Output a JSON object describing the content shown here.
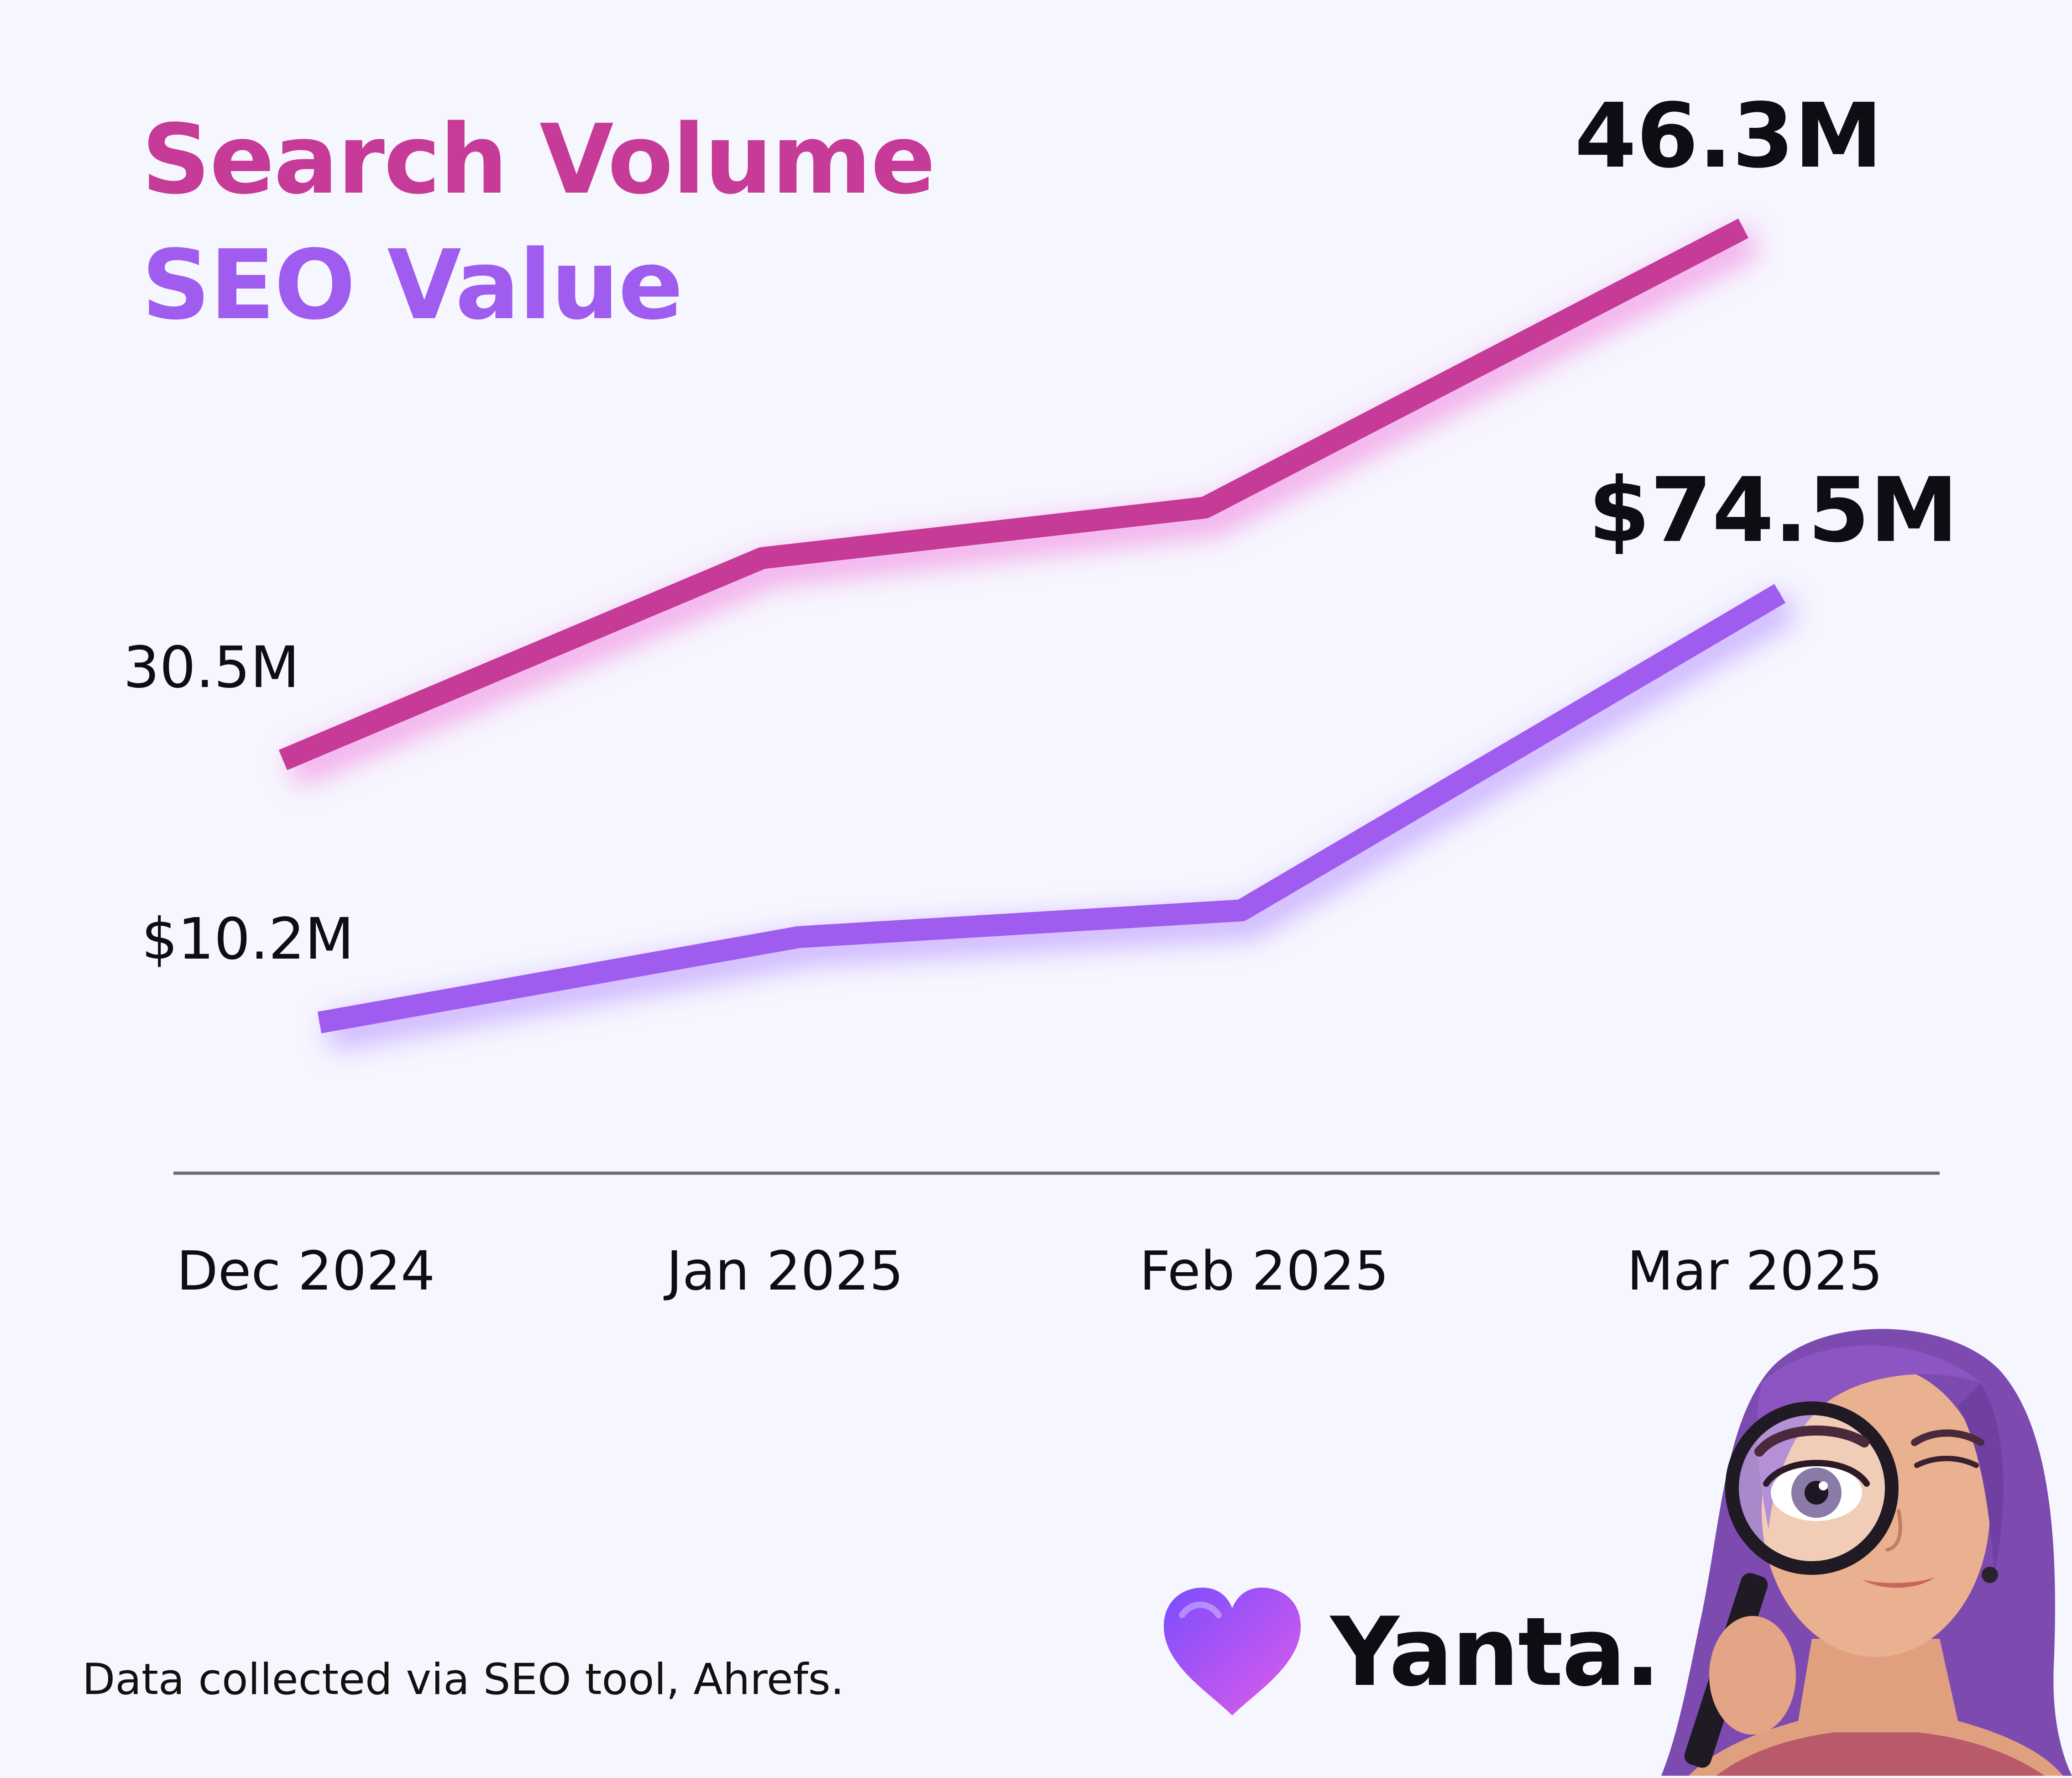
{
  "chart_data": {
    "type": "line",
    "title": "",
    "xlabel": "",
    "ylabel": "",
    "categories": [
      "Dec 2024",
      "Jan 2025",
      "Feb 2025",
      "Mar 2025"
    ],
    "grid": false,
    "legend_placement": "top-left",
    "series": [
      {
        "name": "Search Volume",
        "color": "#c63a98",
        "glow": "#f06bd6",
        "values": [
          30.5,
          36.5,
          38.0,
          46.3
        ],
        "labels": [
          "30.5M",
          "",
          "",
          "46.3M"
        ]
      },
      {
        "name": "SEO Value",
        "color": "#a05cee",
        "glow": "#a87cff",
        "values": [
          10.2,
          23.0,
          27.0,
          74.5
        ],
        "labels": [
          "$10.2M",
          "",
          "",
          "$74.5M"
        ]
      }
    ]
  },
  "legend": {
    "search_volume": "Search Volume",
    "seo_value": "SEO Value"
  },
  "footnote": "Data collected via SEO tool, Ahrefs.",
  "brand": {
    "name": "Yanta.",
    "logo_icon": "heart-icon",
    "logo_colors": [
      "#7b4dff",
      "#e05ce8"
    ]
  },
  "mascot": {
    "icon": "woman-with-magnifying-glass-icon"
  },
  "colors": {
    "background": "#f6f6ff",
    "axis": "#6f6a6c",
    "text": "#0d0d14"
  }
}
